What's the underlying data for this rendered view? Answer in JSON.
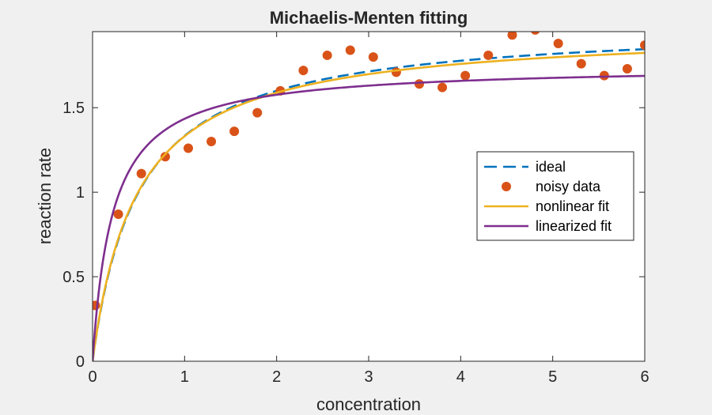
{
  "chart_data": {
    "type": "line",
    "title": "Michaelis-Menten fitting",
    "xlabel": "concentration",
    "ylabel": "reaction rate",
    "xlim": [
      0,
      6
    ],
    "ylim": [
      0,
      1.95
    ],
    "xticks": [
      0,
      1,
      2,
      3,
      4,
      5,
      6
    ],
    "xtick_labels": [
      "0",
      "1",
      "2",
      "3",
      "4",
      "5",
      "6"
    ],
    "yticks": [
      0,
      0.5,
      1,
      1.5
    ],
    "ytick_labels": [
      "0",
      "0.5",
      "1",
      "1.5"
    ],
    "grid": false,
    "legend_position": "right",
    "series": [
      {
        "name": "ideal",
        "style": "dashed",
        "color": "#0072BD",
        "model": "michaelis-menten",
        "Vmax": 2.0,
        "Km": 0.5
      },
      {
        "name": "noisy data",
        "style": "markers",
        "color": "#D95319",
        "x": [
          0.03,
          0.28,
          0.53,
          0.79,
          1.04,
          1.29,
          1.54,
          1.79,
          2.04,
          2.29,
          2.55,
          2.8,
          3.05,
          3.3,
          3.55,
          3.8,
          4.05,
          4.3,
          4.56,
          4.81,
          5.06,
          5.31,
          5.56,
          5.81,
          6.0
        ],
        "values": [
          0.33,
          0.87,
          1.11,
          1.21,
          1.26,
          1.3,
          1.36,
          1.47,
          1.6,
          1.72,
          1.81,
          1.84,
          1.8,
          1.71,
          1.64,
          1.62,
          1.69,
          1.81,
          1.93,
          1.96,
          1.88,
          1.76,
          1.69,
          1.73,
          1.87
        ]
      },
      {
        "name": "nonlinear fit",
        "style": "solid",
        "color": "#EDB120",
        "model": "michaelis-menten",
        "Vmax": 1.97,
        "Km": 0.48
      },
      {
        "name": "linearized fit",
        "style": "solid",
        "color": "#7E2F8E",
        "model": "michaelis-menten",
        "Vmax": 1.75,
        "Km": 0.22
      }
    ]
  }
}
